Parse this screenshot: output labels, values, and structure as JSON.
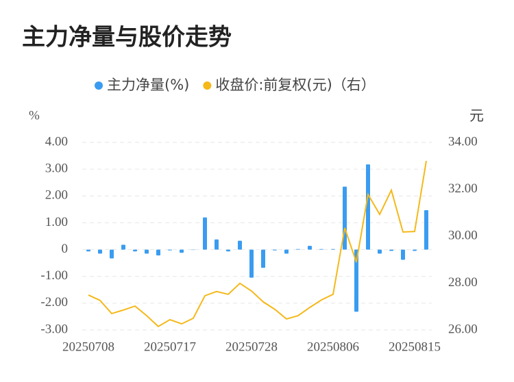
{
  "chart_data": {
    "type": "bar-line",
    "title": "主力净量与股价走势",
    "y_label": "%",
    "y2_label": "元",
    "categories": [
      "20250708",
      null,
      null,
      null,
      null,
      null,
      null,
      "20250717",
      null,
      null,
      null,
      null,
      null,
      null,
      "20250728",
      null,
      null,
      null,
      null,
      null,
      null,
      "20250806",
      null,
      null,
      null,
      null,
      null,
      null,
      "20250815",
      null
    ],
    "series": [
      {
        "name": "主力净量(%)",
        "type": "bar",
        "color": "#3a9cf0",
        "values": [
          -0.07,
          -0.15,
          -0.33,
          0.18,
          -0.07,
          -0.15,
          -0.22,
          -0.03,
          -0.12,
          0,
          1.2,
          0.38,
          -0.07,
          0.33,
          -1.05,
          -0.68,
          -0.03,
          -0.15,
          0.02,
          0.14,
          0.02,
          0.02,
          2.35,
          -2.32,
          3.18,
          -0.15,
          -0.05,
          -0.38,
          -0.05,
          1.47
        ]
      },
      {
        "name": "收盘价:前复权(元)（右）",
        "type": "line",
        "axis": "y2",
        "color": "#f5b818",
        "values": [
          27.49,
          27.26,
          26.7,
          26.85,
          27.02,
          26.61,
          26.15,
          26.44,
          26.26,
          26.5,
          27.46,
          27.64,
          27.52,
          27.99,
          27.66,
          27.2,
          26.88,
          26.47,
          26.61,
          26.96,
          27.28,
          27.52,
          30.35,
          28.89,
          31.78,
          30.93,
          31.96,
          30.18,
          30.2,
          33.21
        ]
      }
    ],
    "ylim": [
      -3,
      4
    ],
    "yticks": [
      {
        "value": -3,
        "label": "-3.00"
      },
      {
        "value": -2,
        "label": "-2.00"
      },
      {
        "value": -1,
        "label": "-1.00"
      },
      0,
      {
        "value": 1,
        "label": "1.00"
      },
      {
        "value": 2,
        "label": "2.00"
      },
      {
        "value": 3,
        "label": "3.00"
      },
      {
        "value": 4,
        "label": "4.00"
      }
    ],
    "y2lim": [
      26,
      34
    ],
    "y2ticks": [
      {
        "value": 26,
        "label": "26.00"
      },
      {
        "value": 28,
        "label": "28.00"
      },
      {
        "value": 30,
        "label": "30.00"
      },
      {
        "value": 32,
        "label": "32.00"
      },
      {
        "value": 34,
        "label": "34.00"
      }
    ],
    "grid": true
  }
}
